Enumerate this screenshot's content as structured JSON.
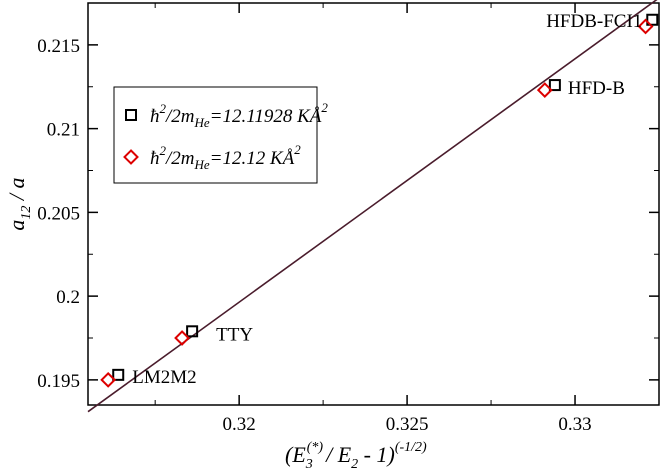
{
  "chart_data": {
    "type": "scatter",
    "xlim": [
      0.3155,
      0.3325
    ],
    "ylim": [
      0.1935,
      0.2175
    ],
    "x_ticks": [
      0.32,
      0.325,
      0.33
    ],
    "x_tick_labels": [
      "0.32",
      "0.325",
      "0.33"
    ],
    "y_ticks": [
      0.195,
      0.2,
      0.205,
      0.21,
      0.215
    ],
    "y_tick_labels": [
      "0.195",
      "0.2",
      "0.205",
      "0.21",
      "0.215"
    ],
    "xlabel": {
      "base": "(E",
      "sub1": "3",
      "sup1": "(*)",
      "mid": "/ E",
      "sub2": "2",
      "tail": " - 1)",
      "sup2": "(-1/2)"
    },
    "ylabel": {
      "base": "a",
      "sub": "12",
      "tail": " / a"
    },
    "fit_line": {
      "x": [
        0.3155,
        0.3325
      ],
      "y": [
        0.1931,
        0.2178
      ],
      "color": "#4a1c2c"
    },
    "series": [
      {
        "name": "ħ²/2m_He = 12.11928 KÅ²",
        "marker": "square",
        "color": "#000000",
        "points": [
          {
            "x": 0.3164,
            "y": 0.1953
          },
          {
            "x": 0.3186,
            "y": 0.1979
          },
          {
            "x": 0.3294,
            "y": 0.2126
          },
          {
            "x": 0.3323,
            "y": 0.2165
          }
        ]
      },
      {
        "name": "ħ²/2m_He = 12.12 KÅ²",
        "marker": "diamond",
        "color": "#dd0000",
        "points": [
          {
            "x": 0.3161,
            "y": 0.195
          },
          {
            "x": 0.3183,
            "y": 0.1975
          },
          {
            "x": 0.3291,
            "y": 0.2123
          },
          {
            "x": 0.3321,
            "y": 0.2161
          }
        ]
      }
    ],
    "point_labels": [
      {
        "text": "LM2M2",
        "x": 0.3164,
        "y": 0.1953
      },
      {
        "text": "TTY",
        "x": 0.3186,
        "y": 0.1979
      },
      {
        "text": "HFD-B",
        "x": 0.3294,
        "y": 0.2126
      },
      {
        "text": "HFDB-FCI1",
        "x": 0.3323,
        "y": 0.2165
      }
    ],
    "legend": {
      "placement": "upper-left",
      "entries": [
        {
          "marker": "square",
          "color": "#000000",
          "prefix": "ħ",
          "sup": "2",
          "mid": "/2m",
          "sub": "He",
          "value": "=12.11928 KÅ",
          "sup2": "2"
        },
        {
          "marker": "diamond",
          "color": "#dd0000",
          "prefix": "ħ",
          "sup": "2",
          "mid": "/2m",
          "sub": "He",
          "value": "=12.12 KÅ",
          "sup2": "2"
        }
      ]
    },
    "grid": false
  }
}
